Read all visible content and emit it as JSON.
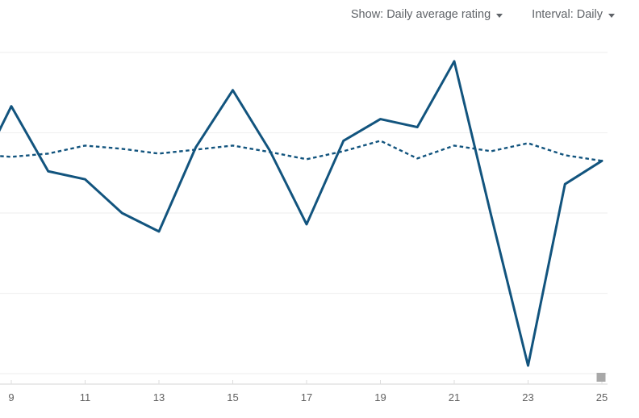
{
  "controls": {
    "show": {
      "prefix": "Show:",
      "value": "Daily average rating"
    },
    "interval": {
      "prefix": "Interval:",
      "value": "Daily"
    }
  },
  "colors": {
    "line": "#12547e",
    "grid": "#f1f1f1",
    "axis": "#dddddd",
    "tick_label": "#616161",
    "control_text": "#5f6368",
    "scroll_thumb": "#a8a8a8"
  },
  "chart_data": {
    "type": "line",
    "title": "",
    "xlabel": "",
    "ylabel": "",
    "x": [
      8,
      9,
      10,
      11,
      12,
      13,
      14,
      15,
      16,
      17,
      18,
      19,
      20,
      21,
      22,
      23,
      24,
      25
    ],
    "series": [
      {
        "name": "daily-average-rating-solid",
        "style": "solid",
        "values": [
          3.4,
          4.33,
          3.52,
          3.42,
          3.0,
          2.77,
          3.82,
          4.53,
          3.78,
          2.86,
          3.9,
          4.17,
          4.07,
          4.89,
          2.97,
          1.1,
          3.36,
          3.65
        ]
      },
      {
        "name": "average-rating-dashed",
        "style": "dashed",
        "values": [
          3.73,
          3.7,
          3.74,
          3.84,
          3.8,
          3.74,
          3.79,
          3.84,
          3.76,
          3.67,
          3.77,
          3.9,
          3.68,
          3.84,
          3.77,
          3.87,
          3.72,
          3.65
        ]
      }
    ],
    "x_ticks": [
      9,
      11,
      13,
      15,
      17,
      19,
      21,
      23,
      25
    ],
    "x_tick_labels": [
      "9",
      "11",
      "13",
      "15",
      "17",
      "19",
      "21",
      "23",
      "25"
    ],
    "ylim": [
      1,
      5
    ],
    "ygrid_values": [
      1,
      2,
      3,
      4,
      5
    ],
    "grid": true,
    "legend": "none",
    "y_axis_labels_visible": false
  }
}
